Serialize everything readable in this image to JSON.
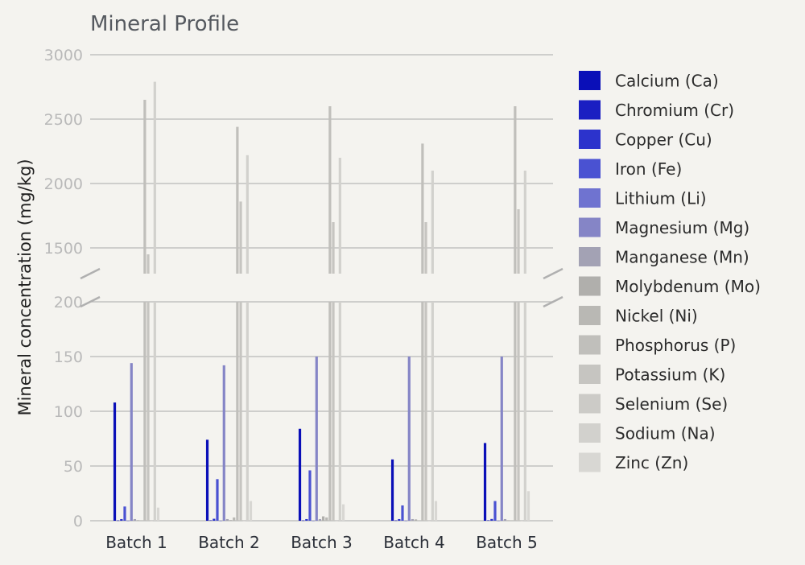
{
  "chart_data": {
    "type": "bar",
    "title": "Mineral Profile",
    "ylabel": "Mineral concentration (mg/kg)",
    "xlabel": "",
    "categories": [
      "Batch 1",
      "Batch 2",
      "Batch 3",
      "Batch 4",
      "Batch 5"
    ],
    "axis_break": {
      "lower_range": [
        0,
        200
      ],
      "upper_range": [
        1300,
        3000
      ]
    },
    "yticks_lower": [
      "0",
      "50",
      "100",
      "150",
      "200"
    ],
    "yticks_upper": [
      "1500",
      "2000",
      "2500",
      "3000"
    ],
    "legend_position": "right",
    "series": [
      {
        "name": "Calcium (Ca)",
        "color": "#0a0fb8",
        "values": [
          108,
          74,
          84,
          56,
          71
        ]
      },
      {
        "name": "Chromium (Cr)",
        "color": "#1a1fc2",
        "values": [
          0.3,
          0.4,
          0.3,
          0.3,
          0.4
        ]
      },
      {
        "name": "Copper (Cu)",
        "color": "#2c33cc",
        "values": [
          1.5,
          1.8,
          1.5,
          1.5,
          1.6
        ]
      },
      {
        "name": "Iron (Fe)",
        "color": "#4a52d2",
        "values": [
          13,
          38,
          46,
          14,
          18
        ]
      },
      {
        "name": "Lithium (Li)",
        "color": "#6f73d0",
        "values": [
          0.1,
          0.1,
          0.1,
          0.1,
          0.1
        ]
      },
      {
        "name": "Magnesium (Mg)",
        "color": "#8585c6",
        "values": [
          144,
          142,
          150,
          150,
          150
        ]
      },
      {
        "name": "Manganese (Mn)",
        "color": "#a3a2b4",
        "values": [
          1.5,
          1.5,
          1.5,
          1.5,
          1.5
        ]
      },
      {
        "name": "Molybdenum (Mo)",
        "color": "#b0afac",
        "values": [
          0.5,
          0.6,
          4,
          1.2,
          0.4
        ]
      },
      {
        "name": "Nickel (Ni)",
        "color": "#b9b8b4",
        "values": [
          0.3,
          3,
          3,
          0.3,
          0.3
        ]
      },
      {
        "name": "Phosphorus (P)",
        "color": "#c0bfbb",
        "values": [
          2650,
          2440,
          2600,
          2310,
          2600
        ]
      },
      {
        "name": "Potassium (K)",
        "color": "#c6c5c1",
        "values": [
          1450,
          1860,
          1700,
          1700,
          1800
        ]
      },
      {
        "name": "Selenium (Se)",
        "color": "#cccbc7",
        "values": [
          0.1,
          0.1,
          0.1,
          0.1,
          0.1
        ]
      },
      {
        "name": "Sodium (Na)",
        "color": "#d2d1cd",
        "values": [
          2790,
          2220,
          2200,
          2100,
          2100
        ]
      },
      {
        "name": "Zinc (Zn)",
        "color": "#d8d7d3",
        "values": [
          12,
          18,
          15,
          18,
          27
        ]
      }
    ]
  }
}
